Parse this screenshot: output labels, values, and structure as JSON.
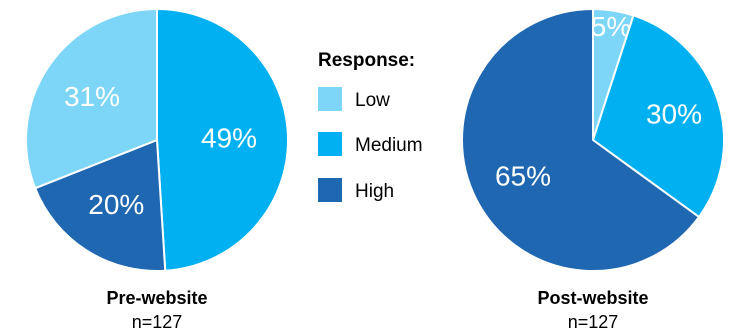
{
  "legend": {
    "title": "Response:",
    "items": [
      {
        "label": "Low",
        "color": "#7dd6f8"
      },
      {
        "label": "Medium",
        "color": "#00b0f0"
      },
      {
        "label": "High",
        "color": "#1f67b0"
      }
    ]
  },
  "chart_data": [
    {
      "type": "pie",
      "title": "Pre-website",
      "subtitle": "n=127",
      "categories": [
        "Medium",
        "High",
        "Low"
      ],
      "values": [
        49,
        20,
        31
      ],
      "labels": [
        "49%",
        "20%",
        "31%"
      ],
      "colors": [
        "#00b0f0",
        "#1f67b0",
        "#7dd6f8"
      ],
      "legend": "center"
    },
    {
      "type": "pie",
      "title": "Post-website",
      "subtitle": "n=127",
      "categories": [
        "Low",
        "Medium",
        "High"
      ],
      "values": [
        5,
        30,
        65
      ],
      "labels": [
        "5%",
        "30%",
        "65%"
      ],
      "colors": [
        "#7dd6f8",
        "#00b0f0",
        "#1f67b0"
      ],
      "legend": "center"
    }
  ]
}
